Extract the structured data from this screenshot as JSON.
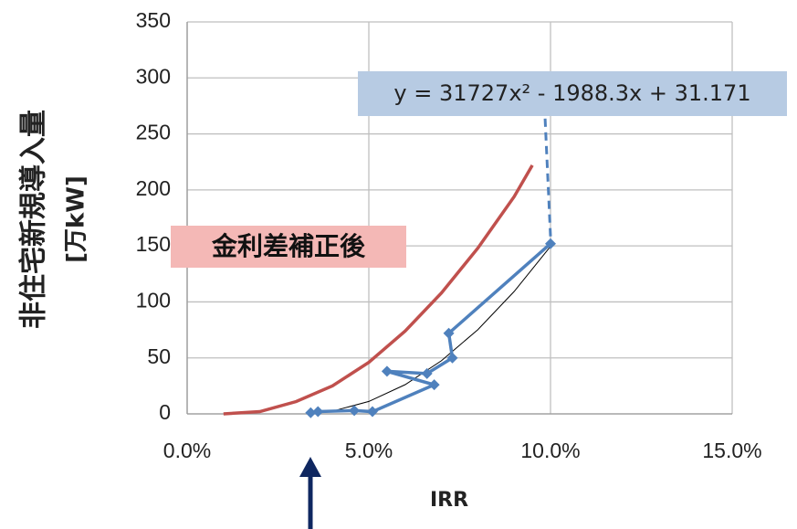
{
  "chart_data": {
    "type": "line",
    "x_label": "IRR",
    "y_label": [
      "非住宅新規導入量",
      "[万kW]"
    ],
    "xlim": [
      0,
      15
    ],
    "xticks": [
      {
        "value": 0,
        "label": "0.0%"
      },
      {
        "value": 5,
        "label": "5.0%"
      },
      {
        "value": 10,
        "label": "10.0%"
      },
      {
        "value": 15,
        "label": "15.0%"
      }
    ],
    "ylim": [
      0,
      350
    ],
    "yticks": [
      0,
      50,
      100,
      150,
      200,
      250,
      300,
      350
    ],
    "grid": true,
    "series": [
      {
        "name": "金利差補正後",
        "color": "#c0504d",
        "x": [
          1,
          2,
          3,
          4,
          5,
          6,
          7,
          8,
          9,
          9.5
        ],
        "values": [
          0,
          2,
          11,
          25,
          46,
          74,
          108,
          148,
          194,
          222
        ]
      },
      {
        "color": "#4f81bd",
        "marker": "diamond",
        "x": [
          3.4,
          3.6,
          4.6,
          5.1,
          6.8,
          5.5,
          6.6,
          7.3,
          7.2,
          10.0
        ],
        "values": [
          1,
          2,
          3,
          2,
          26,
          38,
          36,
          50,
          72,
          152
        ]
      }
    ],
    "trendline": {
      "equation": "y = 31727x² - 1988.3x + 31.171",
      "color": "#000000",
      "x": [
        3.5,
        4,
        5,
        6,
        7,
        8,
        9,
        10
      ],
      "values": [
        0.5,
        2.4,
        11.1,
        26.1,
        47.5,
        75.2,
        109.3,
        149.6
      ]
    }
  }
}
